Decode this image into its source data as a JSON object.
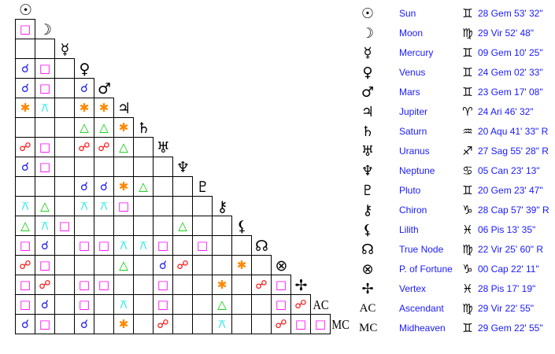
{
  "planets": [
    {
      "glyph": "☉",
      "name": "Sun",
      "sign_glyph": "♊",
      "position": "28 Gem 53' 32\""
    },
    {
      "glyph": "☽",
      "name": "Moon",
      "sign_glyph": "♍",
      "position": "29 Vir 52' 48\""
    },
    {
      "glyph": "☿",
      "name": "Mercury",
      "sign_glyph": "♊",
      "position": "09 Gem 10' 25\""
    },
    {
      "glyph": "♀",
      "name": "Venus",
      "sign_glyph": "♊",
      "position": "24 Gem 02' 33\""
    },
    {
      "glyph": "♂",
      "name": "Mars",
      "sign_glyph": "♊",
      "position": "23 Gem 17' 08\""
    },
    {
      "glyph": "♃",
      "name": "Jupiter",
      "sign_glyph": "♈",
      "position": "24 Ari 46' 32\""
    },
    {
      "glyph": "♄",
      "name": "Saturn",
      "sign_glyph": "♒",
      "position": "20 Aqu 41' 33\" R"
    },
    {
      "glyph": "♅",
      "name": "Uranus",
      "sign_glyph": "♐",
      "position": "27 Sag 55' 28\" R"
    },
    {
      "glyph": "♆",
      "name": "Neptune",
      "sign_glyph": "♋",
      "position": "05 Can 23' 13\""
    },
    {
      "glyph": "♇",
      "name": "Pluto",
      "sign_glyph": "♊",
      "position": "20 Gem 23' 47\""
    },
    {
      "glyph": "⚷",
      "name": "Chiron",
      "sign_glyph": "♑",
      "position": "28 Cap 57' 39\" R"
    },
    {
      "glyph": "⚸",
      "name": "Lilith",
      "sign_glyph": "♓",
      "position": "06 Pis 13' 35\""
    },
    {
      "glyph": "☊",
      "name": "True Node",
      "sign_glyph": "♍",
      "position": "22 Vir 25' 60\" R"
    },
    {
      "glyph": "⊗",
      "name": "P. of Fortune",
      "sign_glyph": "♑",
      "position": "00 Cap 22' 11\""
    },
    {
      "glyph": "✢",
      "name": "Vertex",
      "sign_glyph": "♓",
      "position": "28 Pis 17' 19\""
    },
    {
      "glyph": "AC",
      "name": "Ascendant",
      "sign_glyph": "♍",
      "position": "29 Vir 22' 55\""
    },
    {
      "glyph": "MC",
      "name": "Midheaven",
      "sign_glyph": "♊",
      "position": "29 Gem 22' 55\""
    }
  ],
  "aspects": {
    "C": {
      "name": "conjunction",
      "glyph": "☌",
      "color": "#1a1aee"
    },
    "O": {
      "name": "opposition",
      "glyph": "☍",
      "color": "#ff0000"
    },
    "Q": {
      "name": "square",
      "glyph": "□",
      "color": "#ff00ff"
    },
    "T": {
      "name": "trine",
      "glyph": "△",
      "color": "#00cc00"
    },
    "S": {
      "name": "sextile",
      "glyph": "✱",
      "color": "#ff8800"
    },
    "K": {
      "name": "quincunx",
      "glyph": "⚻",
      "color": "#00e5e5"
    }
  },
  "aspect_grid": [
    [
      "Q"
    ],
    [
      "",
      ""
    ],
    [
      "C",
      "Q",
      ""
    ],
    [
      "C",
      "Q",
      "",
      "C"
    ],
    [
      "S",
      "K",
      "",
      "S",
      "S"
    ],
    [
      "",
      "",
      "",
      "T",
      "T",
      "S"
    ],
    [
      "O",
      "Q",
      "",
      "O",
      "O",
      "T",
      ""
    ],
    [
      "C",
      "Q",
      "",
      "",
      "",
      "",
      "",
      ""
    ],
    [
      "",
      "",
      "",
      "C",
      "C",
      "S",
      "T",
      "",
      ""
    ],
    [
      "K",
      "T",
      "",
      "K",
      "K",
      "Q",
      "",
      "",
      "",
      ""
    ],
    [
      "T",
      "K",
      "Q",
      "",
      "",
      "",
      "",
      "",
      "T",
      "",
      ""
    ],
    [
      "Q",
      "C",
      "",
      "Q",
      "Q",
      "K",
      "K",
      "Q",
      "",
      "Q",
      "",
      ""
    ],
    [
      "O",
      "Q",
      "",
      "",
      "",
      "T",
      "",
      "C",
      "O",
      "",
      "",
      "S",
      ""
    ],
    [
      "Q",
      "O",
      "",
      "Q",
      "Q",
      "",
      "",
      "Q",
      "",
      "",
      "S",
      "",
      "O",
      "Q"
    ],
    [
      "Q",
      "C",
      "",
      "Q",
      "",
      "K",
      "",
      "Q",
      "",
      "",
      "T",
      "",
      "",
      "Q",
      "O"
    ],
    [
      "C",
      "Q",
      "",
      "C",
      "",
      "S",
      "",
      "O",
      "",
      "",
      "K",
      "",
      "",
      "O",
      "Q",
      "Q"
    ]
  ]
}
